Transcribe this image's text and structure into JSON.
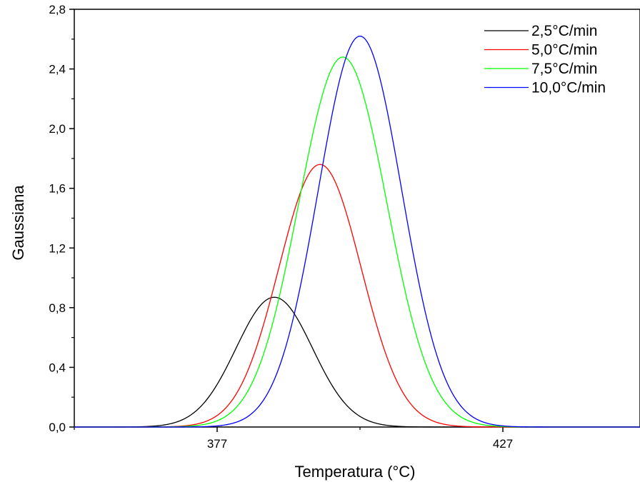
{
  "chart_data": {
    "type": "line",
    "xlabel": "Temperatura (°C)",
    "ylabel": "Gaussiana",
    "xlim": [
      352,
      451
    ],
    "ylim": [
      0,
      2.8
    ],
    "x_ticks": [
      377,
      427
    ],
    "y_ticks": [
      0,
      0.4,
      0.8,
      1.2,
      1.6,
      2.0,
      2.4,
      2.8
    ],
    "y_tick_labels": [
      "0,0",
      "0,4",
      "0,8",
      "1,2",
      "1,6",
      "2,0",
      "2,4",
      "2,8"
    ],
    "grid": false,
    "legend_position": "top-right",
    "series": [
      {
        "name": "2,5°C/min",
        "color": "#000000",
        "center": 387,
        "peak": 0.87,
        "sigma": 6.7
      },
      {
        "name": "5,0°C/min",
        "color": "#ff0000",
        "center": 395,
        "peak": 1.76,
        "sigma": 7.2
      },
      {
        "name": "7,5°C/min",
        "color": "#00ff00",
        "center": 399,
        "peak": 2.48,
        "sigma": 7.7
      },
      {
        "name": "10,0°C/min",
        "color": "#0000ff",
        "center": 402,
        "peak": 2.62,
        "sigma": 7.3
      }
    ]
  }
}
